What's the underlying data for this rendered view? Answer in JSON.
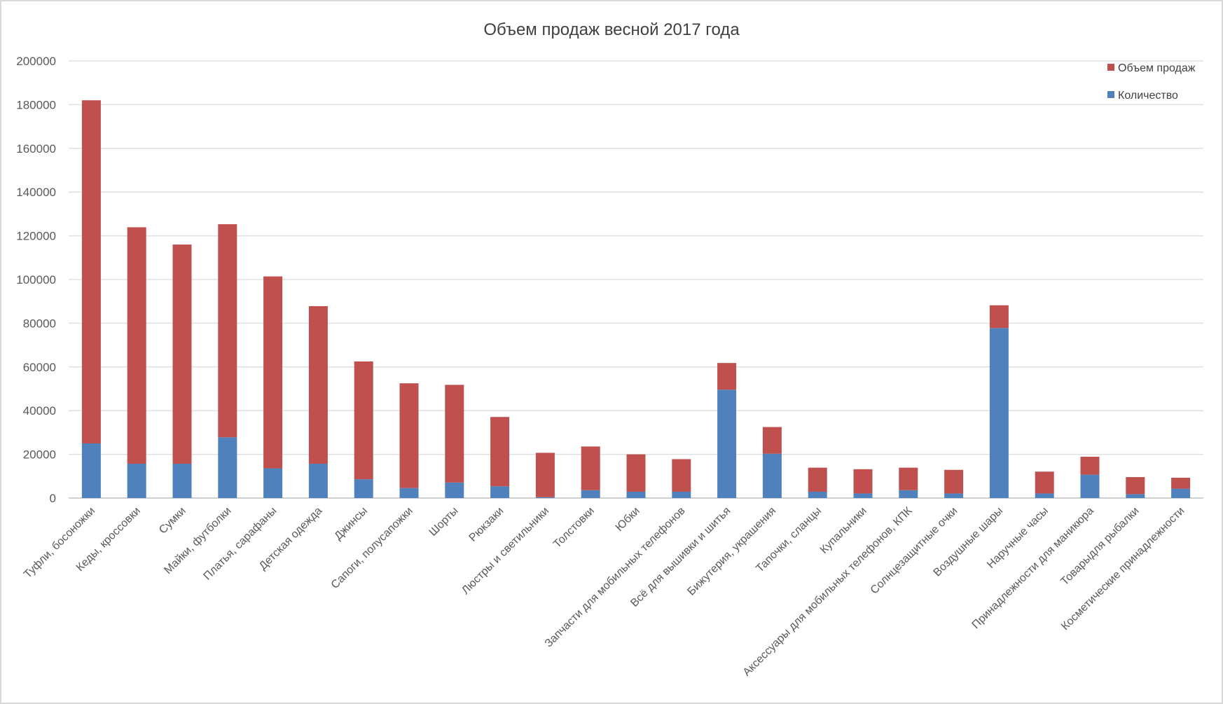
{
  "chart_data": {
    "type": "bar",
    "stacked": true,
    "title": "Объем продаж весной 2017 года",
    "xlabel": "",
    "ylabel": "",
    "ylim": [
      0,
      200000
    ],
    "yticks": [
      "0",
      "20000",
      "40000",
      "60000",
      "80000",
      "100000",
      "120000",
      "140000",
      "160000",
      "180000",
      "200000"
    ],
    "grid": true,
    "legend_position": "top-right",
    "categories": [
      "Туфли, босоножки",
      "Кеды, кроссовки",
      "Сумки",
      "Майки, футболки",
      "Платья, сарафаны",
      "Детская одежда",
      "Джинсы",
      "Сапоги, полусапожки",
      "Шорты",
      "Рюкзаки",
      "Люстры и светильники",
      "Толстовки",
      "Юбки",
      "Запчасти для мобильных телефонов",
      "Всё для вышивки и шитья",
      "Бижутерия, украшения",
      "Тапочки, сланцы",
      "Купальники",
      "Аксессуары для мобильных телефонов, КПК",
      "Солнцезащитные очки",
      "Воздушные шары",
      "Наручные часы",
      "Принадлежности для маникюра",
      "Товарыдля рыбалки",
      "Косметические принадлежности"
    ],
    "series": [
      {
        "name": "Количество",
        "color": "#4f81bd",
        "values": [
          25000,
          15700,
          15700,
          27800,
          13600,
          15700,
          8600,
          4600,
          7100,
          5400,
          400,
          3600,
          2900,
          2900,
          49600,
          20300,
          2900,
          2100,
          3600,
          2100,
          77800,
          2100,
          10700,
          1800,
          4300
        ]
      },
      {
        "name": "Объем продаж",
        "color": "#c0504d",
        "values": [
          157000,
          108200,
          100300,
          97500,
          87800,
          72100,
          53900,
          47900,
          44700,
          31700,
          20300,
          20000,
          17100,
          14900,
          12200,
          12200,
          11000,
          11100,
          10300,
          10800,
          10400,
          10000,
          8200,
          7800,
          5000
        ]
      }
    ],
    "legend_order": [
      "Объем продаж",
      "Количество"
    ]
  }
}
